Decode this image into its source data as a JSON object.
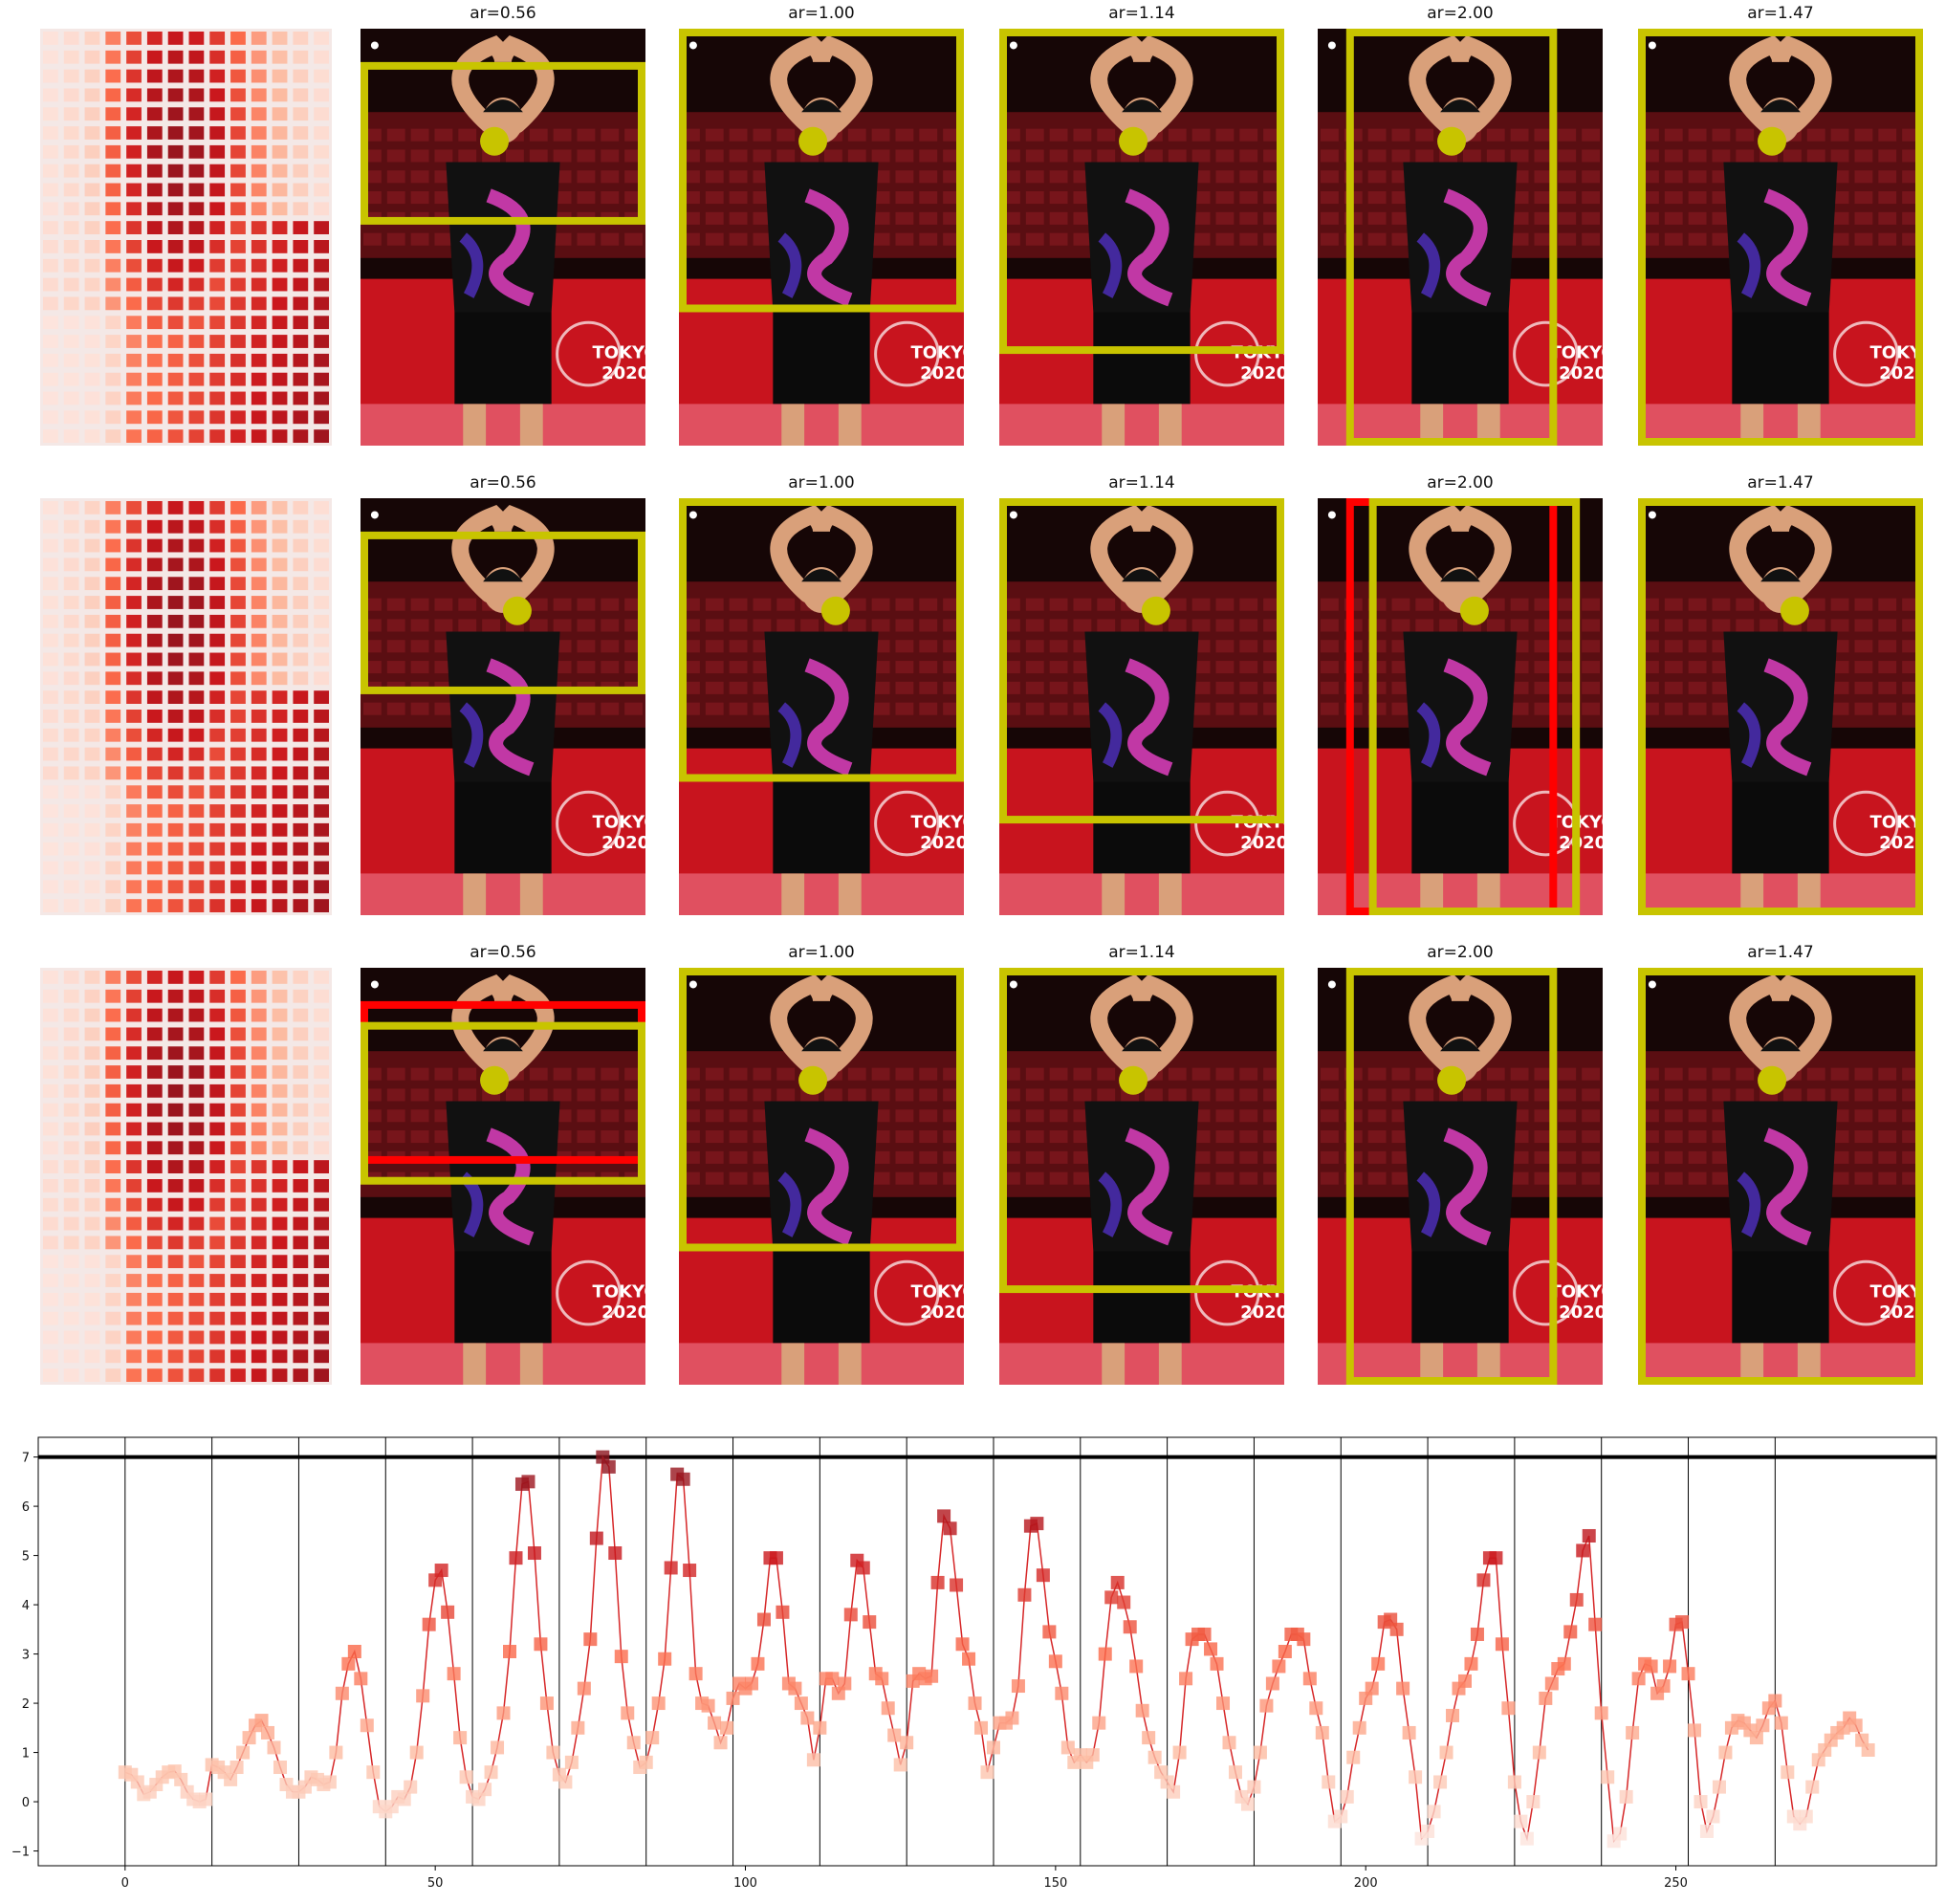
{
  "colors": {
    "box_yellow": "#c8c400",
    "box_red": "#ff0000",
    "threshold_line": "#000000",
    "trace_line": "#d62728"
  },
  "panel_titles": [
    "ar=0.56",
    "ar=1.00",
    "ar=1.14",
    "ar=2.00",
    "ar=1.47"
  ],
  "photo_text": {
    "line1": "TOKYO",
    "line2": "2020"
  },
  "rows": [
    {
      "yellow_boxes": [
        "ar=0.56",
        "ar=1.00",
        "ar=1.14",
        "ar=2.00",
        "ar=1.47"
      ],
      "red_boxes": []
    },
    {
      "yellow_boxes": [
        "ar=0.56",
        "ar=1.00",
        "ar=1.14",
        "ar=2.00",
        "ar=1.47"
      ],
      "red_boxes": [
        "ar=2.00"
      ]
    },
    {
      "yellow_boxes": [
        "ar=0.56",
        "ar=1.00",
        "ar=1.14",
        "ar=2.00",
        "ar=1.47"
      ],
      "red_boxes": [
        "ar=0.56"
      ]
    }
  ],
  "chart_data": {
    "type": "line",
    "x_ticks": [
      0,
      50,
      100,
      150,
      200,
      250
    ],
    "y_ticks": [
      -1,
      0,
      1,
      2,
      3,
      4,
      5,
      6,
      7
    ],
    "xlim": [
      -14,
      292
    ],
    "ylim": [
      -1.3,
      7.4
    ],
    "threshold": 7.0,
    "vertical_lines": [
      0,
      14,
      28,
      42,
      56,
      70,
      84,
      98,
      112,
      126,
      140,
      154,
      168,
      182,
      196,
      210,
      224,
      238,
      252,
      266
    ],
    "x_start": 0,
    "values": [
      0.6,
      0.55,
      0.4,
      0.15,
      0.2,
      0.35,
      0.5,
      0.6,
      0.62,
      0.45,
      0.2,
      0.05,
      0.0,
      0.05,
      0.75,
      0.7,
      0.6,
      0.45,
      0.7,
      1.0,
      1.3,
      1.55,
      1.65,
      1.4,
      1.1,
      0.7,
      0.35,
      0.2,
      0.2,
      0.3,
      0.5,
      0.45,
      0.35,
      0.4,
      1.0,
      2.2,
      2.8,
      3.05,
      2.5,
      1.55,
      0.6,
      -0.1,
      -0.2,
      -0.1,
      0.1,
      0.05,
      0.3,
      1.0,
      2.15,
      3.6,
      4.5,
      4.7,
      3.85,
      2.6,
      1.3,
      0.5,
      0.1,
      0.05,
      0.25,
      0.6,
      1.1,
      1.8,
      3.05,
      4.95,
      6.45,
      6.5,
      5.05,
      3.2,
      2.0,
      1.0,
      0.55,
      0.4,
      0.8,
      1.5,
      2.3,
      3.3,
      5.35,
      7.0,
      6.8,
      5.05,
      2.95,
      1.8,
      1.2,
      0.7,
      0.8,
      1.3,
      2.0,
      2.9,
      4.75,
      6.65,
      6.55,
      4.7,
      2.6,
      2.0,
      1.95,
      1.6,
      1.2,
      1.5,
      2.1,
      2.4,
      2.3,
      2.4,
      2.8,
      3.7,
      4.95,
      4.95,
      3.85,
      2.4,
      2.3,
      2.0,
      1.7,
      0.85,
      1.5,
      2.5,
      2.5,
      2.2,
      2.4,
      3.8,
      4.9,
      4.75,
      3.65,
      2.6,
      2.5,
      1.9,
      1.35,
      0.75,
      1.2,
      2.45,
      2.6,
      2.5,
      2.55,
      4.45,
      5.8,
      5.55,
      4.4,
      3.2,
      2.9,
      2.0,
      1.5,
      0.6,
      1.1,
      1.6,
      1.6,
      1.7,
      2.35,
      4.2,
      5.6,
      5.65,
      4.6,
      3.45,
      2.85,
      2.2,
      1.1,
      0.8,
      0.95,
      0.8,
      0.95,
      1.6,
      3.0,
      4.15,
      4.45,
      4.05,
      3.55,
      2.75,
      1.85,
      1.3,
      0.9,
      0.6,
      0.4,
      0.2,
      1.0,
      2.5,
      3.3,
      3.4,
      3.4,
      3.1,
      2.8,
      2.0,
      1.2,
      0.6,
      0.1,
      -0.05,
      0.3,
      1.0,
      1.95,
      2.4,
      2.75,
      3.05,
      3.4,
      3.4,
      3.3,
      2.5,
      1.9,
      1.4,
      0.4,
      -0.4,
      -0.3,
      0.1,
      0.9,
      1.5,
      2.1,
      2.3,
      2.8,
      3.65,
      3.7,
      3.5,
      2.3,
      1.4,
      0.5,
      -0.75,
      -0.6,
      -0.2,
      0.4,
      1.0,
      1.75,
      2.3,
      2.45,
      2.8,
      3.4,
      4.5,
      4.95,
      4.95,
      3.2,
      1.9,
      0.4,
      -0.4,
      -0.75,
      0.0,
      1.0,
      2.1,
      2.4,
      2.7,
      2.8,
      3.45,
      4.1,
      5.1,
      5.4,
      3.6,
      1.8,
      0.5,
      -0.8,
      -0.65,
      0.1,
      1.4,
      2.5,
      2.8,
      2.75,
      2.2,
      2.35,
      2.75,
      3.6,
      3.65,
      2.6,
      1.45,
      0.0,
      -0.6,
      -0.3,
      0.3,
      1.0,
      1.5,
      1.65,
      1.6,
      1.45,
      1.3,
      1.55,
      1.9,
      2.05,
      1.6,
      0.6,
      -0.3,
      -0.45,
      -0.3,
      0.3,
      0.85,
      1.05,
      1.25,
      1.4,
      1.5,
      1.7,
      1.55,
      1.25,
      1.05
    ]
  }
}
